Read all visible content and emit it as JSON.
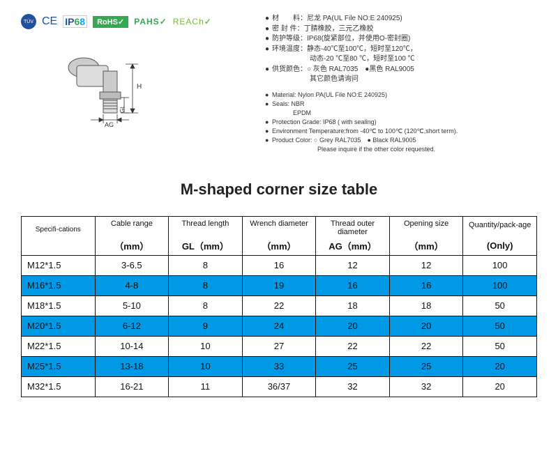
{
  "certs": {
    "tuv": "TÜV",
    "ce": "CE",
    "ip68_ip": "IP",
    "ip68_6": "6",
    "ip68_8": "8",
    "rohs": "RoHS",
    "pahs": "PAHS",
    "reach": "REACh",
    "check": "✓"
  },
  "diagram": {
    "label_h": "H",
    "label_gl": "GL",
    "label_ag": "AG"
  },
  "spec_cn": {
    "l1a": "材　　料：",
    "l1b": "尼龙 PA(UL File NO:E 240925)",
    "l2a": "密 封 件：",
    "l2b": "丁腈橡胶，三元乙橡胶",
    "l3a": "防护等级：",
    "l3b": "IP68(旋紧部位，并使用O-密封圈)",
    "l4a": "环境温度：",
    "l4b": "静态-40℃至100℃，短时至120℃，",
    "l4c": "动态-20 ℃至80 ℃，短时至100 ℃",
    "l5a": "供货颜色：",
    "l5b": "○ 灰色 RAL7035　●黑色 RAL9005",
    "l5c": "其它颜色请询问"
  },
  "spec_en": {
    "l1": "Material: Nylon PA(UL File NO:E 240925)",
    "l2": "Seals: NBR",
    "l2b": "EPDM",
    "l3": "Protection Grade: IP68 ( with sealing)",
    "l4": "Environment Temperature:from -40℃ to 100℃ (120℃,short term).",
    "l5": "Product Color: ○ Grey RAL7035　● Black RAL9005",
    "l5b": "Please inquire if the other color requested."
  },
  "table_title": "M-shaped corner size table",
  "columns": [
    {
      "top": "Specifi-cations",
      "bot": " "
    },
    {
      "top": "Cable range",
      "bot": "（mm）"
    },
    {
      "top": "Thread length",
      "bot": "GL（mm）"
    },
    {
      "top": "Wrench diameter",
      "bot": "（mm）"
    },
    {
      "top": "Thread outer diameter",
      "bot": "AG（mm）"
    },
    {
      "top": "Opening size",
      "bot": "（mm）"
    },
    {
      "top": "Quantity/pack-age",
      "bot": "(Only)"
    }
  ],
  "rows": [
    {
      "blue": false,
      "cells": [
        "M12*1.5",
        "3-6.5",
        "8",
        "16",
        "12",
        "12",
        "100"
      ]
    },
    {
      "blue": true,
      "cells": [
        "M16*1.5",
        "4-8",
        "8",
        "19",
        "16",
        "16",
        "100"
      ]
    },
    {
      "blue": false,
      "cells": [
        "M18*1.5",
        "5-10",
        "8",
        "22",
        "18",
        "18",
        "50"
      ]
    },
    {
      "blue": true,
      "cells": [
        "M20*1.5",
        "6-12",
        "9",
        "24",
        "20",
        "20",
        "50"
      ]
    },
    {
      "blue": false,
      "cells": [
        "M22*1.5",
        "10-14",
        "10",
        "27",
        "22",
        "22",
        "50"
      ]
    },
    {
      "blue": true,
      "cells": [
        "M25*1.5",
        "13-18",
        "10",
        "33",
        "25",
        "25",
        "20"
      ]
    },
    {
      "blue": false,
      "cells": [
        "M32*1.5",
        "16-21",
        "11",
        "36/37",
        "32",
        "32",
        "20"
      ]
    }
  ],
  "styles": {
    "blue_row_bg": "#0099e6",
    "border_color": "#111111"
  }
}
